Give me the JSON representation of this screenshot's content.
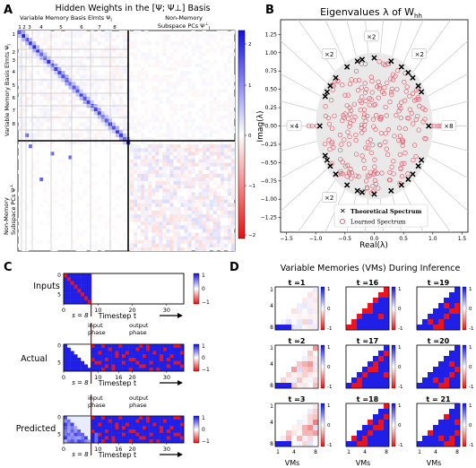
{
  "panel_letters": {
    "a": "A",
    "b": "B",
    "c": "C",
    "d": "D"
  },
  "panelA": {
    "title": "Hidden Weights in the [Ψ; Ψ⊥] Basis",
    "label_vm": "Variable Memory Basis Elmts Ψ",
    "label_vm_sub": "l",
    "label_nonmem": "Non-Memory",
    "label_subspace": "Subspace PCs Ψ",
    "label_subspace_sup": "⊥",
    "label_subspace_sub": "l",
    "ylabel_top": "Variable Memory Basis Elmts Ψ",
    "ylabel_top_sub": "l",
    "ylabel_bottom1": "Non-Memory",
    "ylabel_bottom2": "Subspace PCs Ψ",
    "ylabel_bottom_sup": "⊥",
    "ylabel_bottom_sub": "l",
    "col_ticks": [
      "1",
      "2",
      "3",
      "4",
      "5",
      "6",
      "7",
      "8"
    ],
    "row_ticks": [
      "1",
      "2",
      "3",
      "4",
      "5",
      "6",
      "7",
      "8"
    ],
    "colorbar_ticks": [
      "2",
      "1",
      "0",
      "−1",
      "−2"
    ]
  },
  "chart_data": [
    {
      "type": "scatter",
      "title": "Eigenvalues λ of W",
      "title_sub": "hh",
      "xlabel": "Real(λ)",
      "ylabel": "Imag(λ)",
      "xlim": [
        -1.6,
        1.6
      ],
      "ylim": [
        -1.45,
        1.45
      ],
      "xticks": [
        "−1.5",
        "−1.0",
        "−0.5",
        "0.0",
        "0.5",
        "1.0",
        "1.5"
      ],
      "yticks": [
        "1.25",
        "1.00",
        "0.75",
        "0.50",
        "0.25",
        "0.00",
        "−0.25",
        "−0.50",
        "−0.75",
        "−1.00",
        "−1.25"
      ],
      "series": [
        {
          "name": "Theoretical Spectrum",
          "marker": "x",
          "color": "#000000",
          "points": [
            [
              1,
              0
            ],
            [
              -1,
              0
            ],
            [
              0.623,
              0.782
            ],
            [
              0.623,
              -0.782
            ],
            [
              -0.223,
              0.975
            ],
            [
              -0.223,
              -0.975
            ],
            [
              -0.901,
              0.434
            ],
            [
              -0.901,
              -0.434
            ],
            [
              0.5,
              0.866
            ],
            [
              0.5,
              -0.866
            ],
            [
              -0.5,
              0.866
            ],
            [
              -0.5,
              -0.866
            ],
            [
              0.0,
              1.0
            ],
            [
              0.0,
              -1.0
            ],
            [
              0.866,
              0.5
            ],
            [
              0.866,
              -0.5
            ],
            [
              -0.866,
              0.5
            ],
            [
              -0.866,
              -0.5
            ],
            [
              0.707,
              0.707
            ],
            [
              0.707,
              -0.707
            ],
            [
              -0.707,
              0.707
            ],
            [
              -0.707,
              -0.707
            ],
            [
              0.309,
              0.951
            ],
            [
              0.309,
              -0.951
            ],
            [
              -0.309,
              0.951
            ],
            [
              -0.309,
              -0.951
            ],
            [
              0.809,
              0.588
            ],
            [
              0.809,
              -0.588
            ],
            [
              -0.809,
              0.588
            ],
            [
              -0.809,
              -0.588
            ]
          ]
        },
        {
          "name": "Learned Spectrum",
          "marker": "o",
          "color": "#e06070"
        }
      ],
      "multiplicity_labels": [
        {
          "text": "×2",
          "x": -0.05,
          "y": 1.22
        },
        {
          "text": "×2",
          "x": -0.77,
          "y": 0.98
        },
        {
          "text": "×2",
          "x": 0.77,
          "y": 0.98
        },
        {
          "text": "×4",
          "x": -1.37,
          "y": 0.0
        },
        {
          "text": "×8",
          "x": 1.27,
          "y": 0.0
        },
        {
          "text": "×2",
          "x": -0.77,
          "y": -0.98
        },
        {
          "text": "×2",
          "x": -0.05,
          "y": -1.22
        }
      ]
    }
  ],
  "panelC": {
    "rows": [
      "Inputs",
      "Actual",
      "Predicted"
    ],
    "phase_input1": "input",
    "phase_input2": "phase",
    "phase_output1": "output",
    "phase_output2": "phase",
    "s_label": "s = 8",
    "xlabel": "Timestep t",
    "xticks_inputs": [
      "0",
      "10",
      "20",
      "30"
    ],
    "xticks_actual": [
      "0",
      "10",
      "16",
      "20",
      "30"
    ],
    "yticks": [
      "0",
      "5"
    ],
    "cb_ticks": [
      "1",
      "0",
      "−1"
    ]
  },
  "panelD": {
    "title": "Variable Memories (VMs) During Inference",
    "t_labels": [
      "t =1",
      "t =16",
      "t =19",
      "t =2",
      "t =17",
      "t =20",
      "t =3",
      "t =18",
      "t = 21"
    ],
    "ticks": [
      "1",
      "4",
      "8"
    ],
    "cb_ticks": [
      "1",
      "0",
      "-1"
    ],
    "xlabel": "VMs"
  },
  "colors": {
    "blue": "#1f1fe6",
    "red": "#e8141e",
    "light_gray": "#e8e8e8",
    "grid": "#c8c8c8"
  }
}
